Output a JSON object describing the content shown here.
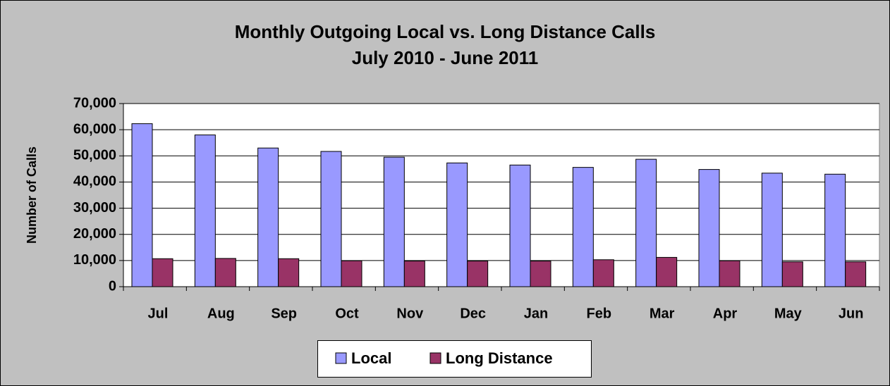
{
  "chart_data": {
    "type": "bar",
    "title": "Monthly Outgoing Local vs. Long Distance Calls",
    "subtitle": "July 2010 - June 2011",
    "y_label": "Number of Calls",
    "categories": [
      "Jul",
      "Aug",
      "Sep",
      "Oct",
      "Nov",
      "Dec",
      "Jan",
      "Feb",
      "Mar",
      "Apr",
      "May",
      "Jun"
    ],
    "series": [
      {
        "name": "Local",
        "color": "#9999ff",
        "values": [
          62300,
          58000,
          53000,
          51700,
          49500,
          47300,
          46500,
          45600,
          48700,
          44800,
          43400,
          43000
        ]
      },
      {
        "name": "Long Distance",
        "color": "#993366",
        "values": [
          10700,
          10800,
          10700,
          9900,
          9800,
          9800,
          9800,
          10300,
          11200,
          9900,
          9500,
          9500
        ]
      }
    ],
    "ylim": [
      0,
      70000
    ],
    "yticks": [
      0,
      {
        "value": 10000,
        "label": "10,000"
      },
      {
        "value": 20000,
        "label": "20,000"
      },
      {
        "value": 30000,
        "label": "30,000"
      },
      {
        "value": 40000,
        "label": "40,000"
      },
      {
        "value": 50000,
        "label": "50,000"
      },
      {
        "value": 60000,
        "label": "60,000"
      },
      {
        "value": 70000,
        "label": "70,000"
      }
    ],
    "grid": true,
    "legend": "bottom"
  }
}
